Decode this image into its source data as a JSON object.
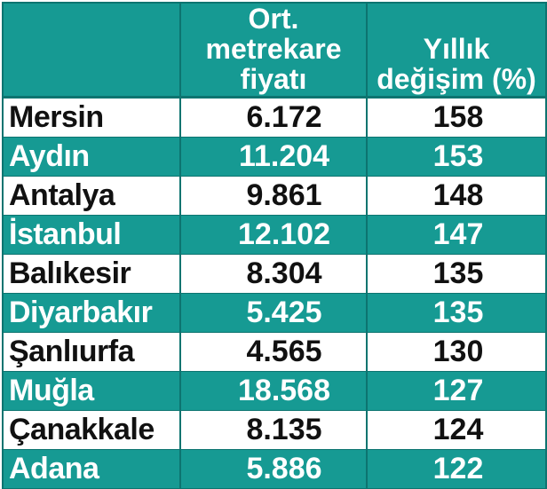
{
  "header": {
    "col1": "",
    "col2_line1": "Ort. metrekare",
    "col2_line2": "fiyatı",
    "col3_line1": "Yıllık",
    "col3_line2": "değişim (%)"
  },
  "rows": [
    {
      "city": "Mersin",
      "price": "6.172",
      "change": "158"
    },
    {
      "city": "Aydın",
      "price": "11.204",
      "change": "153"
    },
    {
      "city": "Antalya",
      "price": "9.861",
      "change": "148"
    },
    {
      "city": "İstanbul",
      "price": "12.102",
      "change": "147"
    },
    {
      "city": "Balıkesir",
      "price": "8.304",
      "change": "135"
    },
    {
      "city": "Diyarbakır",
      "price": "5.425",
      "change": "135"
    },
    {
      "city": "Şanlıurfa",
      "price": "4.565",
      "change": "130"
    },
    {
      "city": "Muğla",
      "price": "18.568",
      "change": "127"
    },
    {
      "city": "Çanakkale",
      "price": "8.135",
      "change": "124"
    },
    {
      "city": "Adana",
      "price": "5.886",
      "change": "122"
    }
  ],
  "colors": {
    "teal": "#169a93",
    "border": "#0d7470",
    "text_dark": "#111111",
    "text_light": "#ffffff"
  }
}
